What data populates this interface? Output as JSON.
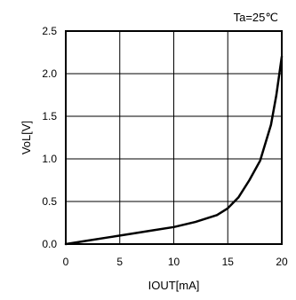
{
  "chart_data": {
    "type": "line",
    "annotation": "Ta=25℃",
    "xlabel": "IOUT[mA]",
    "ylabel": "VoL[V]",
    "xlim": [
      0,
      20
    ],
    "ylim": [
      0,
      2.5
    ],
    "x_ticks": [
      0,
      5,
      10,
      15,
      20
    ],
    "y_ticks": [
      0.0,
      0.5,
      1.0,
      1.5,
      2.0,
      2.5
    ],
    "x_tick_labels": [
      "0",
      "5",
      "10",
      "15",
      "20"
    ],
    "y_tick_labels": [
      "0.0",
      "0.5",
      "1.0",
      "1.5",
      "2.0",
      "2.5"
    ],
    "grid": true,
    "series": [
      {
        "x": [
          0,
          2,
          4,
          6,
          8,
          10,
          12,
          14,
          15,
          16,
          17,
          18,
          19,
          19.5,
          20
        ],
        "y": [
          0.0,
          0.04,
          0.08,
          0.12,
          0.16,
          0.2,
          0.26,
          0.34,
          0.42,
          0.55,
          0.75,
          0.98,
          1.4,
          1.75,
          2.2
        ],
        "color": "#000000"
      }
    ]
  }
}
